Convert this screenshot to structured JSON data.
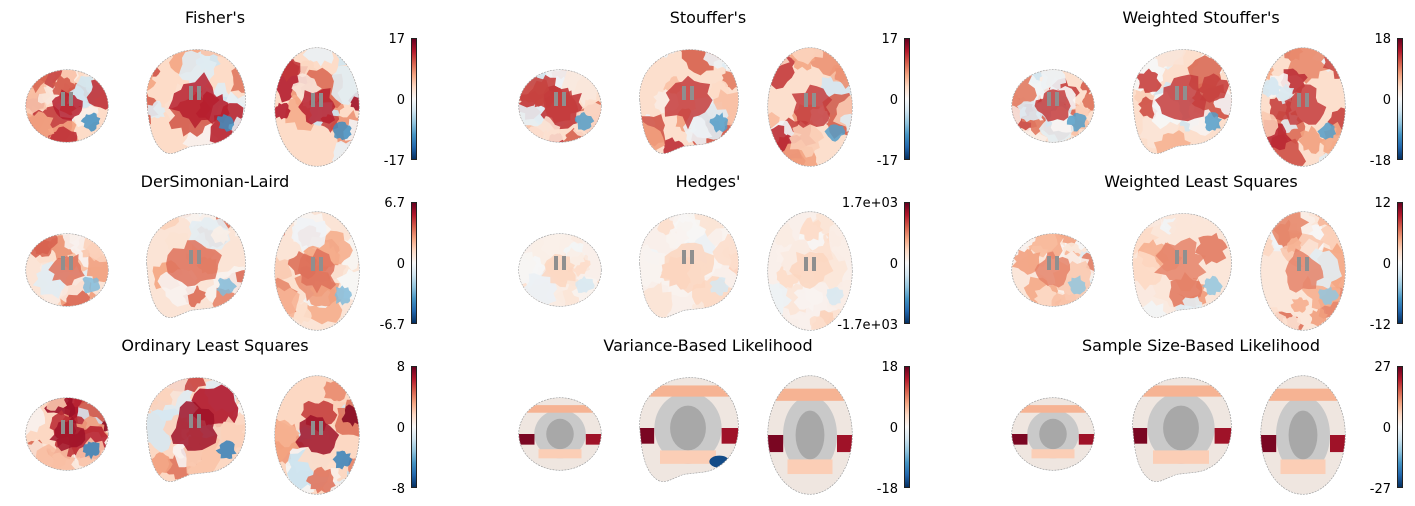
{
  "colormap": {
    "name": "RdBu_r",
    "stops": [
      "#053061",
      "#2166ac",
      "#4393c3",
      "#92c5de",
      "#d1e5f0",
      "#f7f7f7",
      "#fddbc7",
      "#f4a582",
      "#d6604d",
      "#b2182b",
      "#67001f"
    ]
  },
  "panels": [
    {
      "title": "Fisher's",
      "ticks": {
        "max": "17",
        "mid": "0",
        "min": "-17"
      },
      "intensity": 0.78,
      "variant": "voxel"
    },
    {
      "title": "Stouffer's",
      "ticks": {
        "max": "17",
        "mid": "0",
        "min": "-17"
      },
      "intensity": 0.7,
      "variant": "voxel"
    },
    {
      "title": "Weighted Stouffer's",
      "ticks": {
        "max": "18",
        "mid": "0",
        "min": "-18"
      },
      "intensity": 0.7,
      "variant": "voxel"
    },
    {
      "title": "DerSimonian-Laird",
      "ticks": {
        "max": "6.7",
        "mid": "0",
        "min": "-6.7"
      },
      "intensity": 0.55,
      "variant": "voxel"
    },
    {
      "title": "Hedges'",
      "ticks": {
        "max": "1.7e+03",
        "mid": "0",
        "min": "-1.7e+03"
      },
      "intensity": 0.22,
      "variant": "voxel"
    },
    {
      "title": "Weighted Least Squares",
      "ticks": {
        "max": "12",
        "mid": "0",
        "min": "-12"
      },
      "intensity": 0.5,
      "variant": "voxel"
    },
    {
      "title": "Ordinary Least Squares",
      "ticks": {
        "max": "8",
        "mid": "0",
        "min": "-8"
      },
      "intensity": 0.85,
      "variant": "voxel"
    },
    {
      "title": "Variance-Based Likelihood",
      "ticks": {
        "max": "18",
        "mid": "0",
        "min": "-18"
      },
      "intensity": 0.6,
      "variant": "atlas"
    },
    {
      "title": "Sample Size-Based Likelihood",
      "ticks": {
        "max": "27",
        "mid": "0",
        "min": "-27"
      },
      "intensity": 0.6,
      "variant": "atlas"
    }
  ]
}
